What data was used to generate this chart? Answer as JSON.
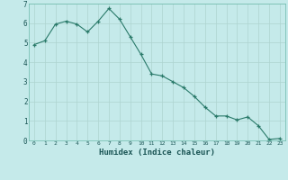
{
  "x": [
    0,
    1,
    2,
    3,
    4,
    5,
    6,
    7,
    8,
    9,
    10,
    11,
    12,
    13,
    14,
    15,
    16,
    17,
    18,
    19,
    20,
    21,
    22,
    23
  ],
  "y": [
    4.9,
    5.1,
    5.95,
    6.1,
    5.95,
    5.55,
    6.1,
    6.75,
    6.2,
    5.3,
    4.4,
    3.4,
    3.3,
    3.0,
    2.7,
    2.25,
    1.7,
    1.25,
    1.25,
    1.05,
    1.2,
    0.75,
    0.05,
    0.1
  ],
  "xlabel": "Humidex (Indice chaleur)",
  "xlim": [
    -0.5,
    23.5
  ],
  "ylim": [
    0,
    7
  ],
  "yticks": [
    0,
    1,
    2,
    3,
    4,
    5,
    6,
    7
  ],
  "xticks": [
    0,
    1,
    2,
    3,
    4,
    5,
    6,
    7,
    8,
    9,
    10,
    11,
    12,
    13,
    14,
    15,
    16,
    17,
    18,
    19,
    20,
    21,
    22,
    23
  ],
  "line_color": "#2a7a6a",
  "marker": "+",
  "bg_color": "#c5eaea",
  "grid_color": "#aed4d0",
  "tick_color": "#1a5555",
  "label_color": "#1a5555",
  "spine_color": "#6abaaa"
}
